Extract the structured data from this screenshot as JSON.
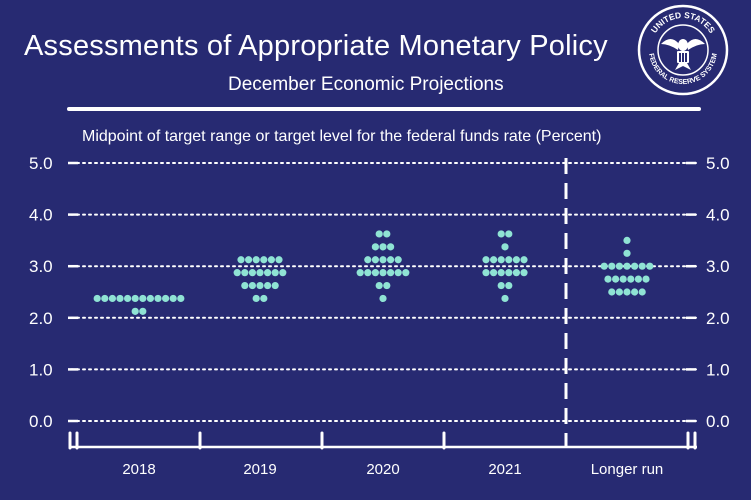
{
  "header": {
    "title": "Assessments of Appropriate Monetary Policy",
    "subtitle": "December Economic Projections",
    "seal_text": "UNITED STATES FEDERAL RESERVE SYSTEM"
  },
  "colors": {
    "background": "#272a72",
    "dots": "#8fe3d4",
    "text": "#ffffff"
  },
  "chart_data": {
    "type": "scatter",
    "title": "Midpoint of target range or target level for the federal funds rate (Percent)",
    "categories": [
      "2018",
      "2019",
      "2020",
      "2021",
      "Longer run"
    ],
    "yticks": [
      "5.0",
      "4.0",
      "3.0",
      "2.0",
      "1.0",
      "0.0"
    ],
    "ylim": [
      0,
      5
    ],
    "grid": true,
    "dot_plot": [
      {
        "category": "2018",
        "levels": [
          {
            "y": 2.375,
            "count": 12
          },
          {
            "y": 2.125,
            "count": 2
          }
        ]
      },
      {
        "category": "2019",
        "levels": [
          {
            "y": 3.125,
            "count": 6
          },
          {
            "y": 2.875,
            "count": 7
          },
          {
            "y": 2.625,
            "count": 5
          },
          {
            "y": 2.375,
            "count": 2
          }
        ]
      },
      {
        "category": "2020",
        "levels": [
          {
            "y": 3.625,
            "count": 2
          },
          {
            "y": 3.375,
            "count": 3
          },
          {
            "y": 3.125,
            "count": 5
          },
          {
            "y": 2.875,
            "count": 7
          },
          {
            "y": 2.625,
            "count": 2
          },
          {
            "y": 2.375,
            "count": 1
          }
        ]
      },
      {
        "category": "2021",
        "levels": [
          {
            "y": 3.625,
            "count": 2
          },
          {
            "y": 3.375,
            "count": 1
          },
          {
            "y": 3.125,
            "count": 6
          },
          {
            "y": 2.875,
            "count": 6
          },
          {
            "y": 2.625,
            "count": 2
          },
          {
            "y": 2.375,
            "count": 1
          }
        ]
      },
      {
        "category": "Longer run",
        "levels": [
          {
            "y": 3.5,
            "count": 1
          },
          {
            "y": 3.25,
            "count": 1
          },
          {
            "y": 3.0,
            "count": 7
          },
          {
            "y": 2.75,
            "count": 6
          },
          {
            "y": 2.5,
            "count": 5
          }
        ]
      }
    ]
  }
}
